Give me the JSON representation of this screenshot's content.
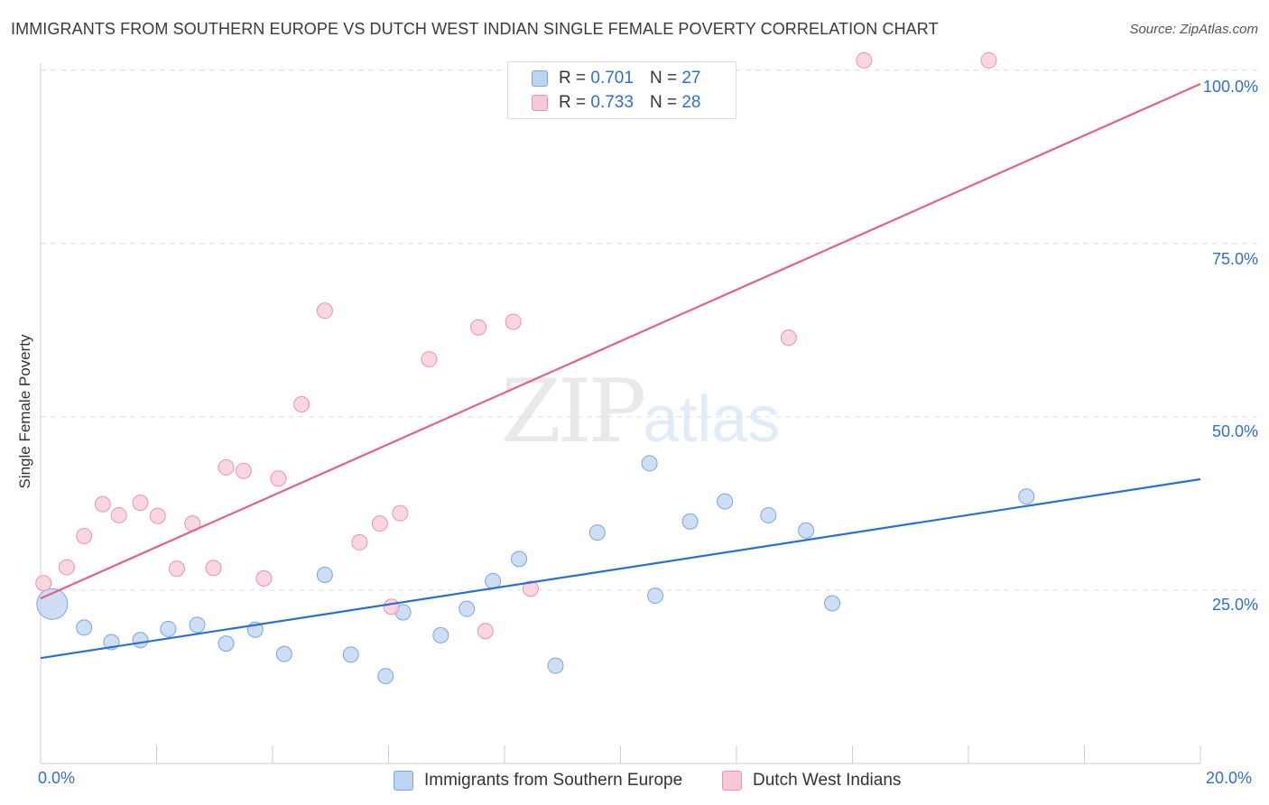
{
  "title": "IMMIGRANTS FROM SOUTHERN EUROPE VS DUTCH WEST INDIAN SINGLE FEMALE POVERTY CORRELATION CHART",
  "source": "Source: ZipAtlas.com",
  "watermark": {
    "zip": "ZIP",
    "atlas": "atlas"
  },
  "legend_top": [
    {
      "r_label": "R =",
      "r_value": "0.701",
      "n_label": "N =",
      "n_value": "27"
    },
    {
      "r_label": "R =",
      "r_value": "0.733",
      "n_label": "N =",
      "n_value": "28"
    }
  ],
  "colors": {
    "blue_fill": "#bcd3f2",
    "blue_stroke": "#7aa6e0",
    "blue_line": "#2a6fd1",
    "pink_fill": "#f8c8d6",
    "pink_stroke": "#eb93ad",
    "pink_line": "#e0628b",
    "tick_text": "#2f6fd0",
    "grid": "#dedede"
  },
  "chart_data": {
    "type": "scatter",
    "title": "IMMIGRANTS FROM SOUTHERN EUROPE VS DUTCH WEST INDIAN SINGLE FEMALE POVERTY CORRELATION CHART",
    "xlabel": "",
    "ylabel": "Single Female Poverty",
    "xlim": [
      0,
      20
    ],
    "ylim": [
      0,
      101
    ],
    "x_tick_labels": [
      "0.0%",
      "20.0%"
    ],
    "y_ticks": [
      25,
      50,
      75,
      100
    ],
    "y_tick_labels": [
      "25.0%",
      "50.0%",
      "75.0%",
      "100.0%"
    ],
    "grid": "horizontal dashed",
    "legend_position": "bottom",
    "series": [
      {
        "name": "Immigrants from Southern Europe",
        "color": "#bcd3f2",
        "r": 0.701,
        "n": 27,
        "trend": {
          "x": [
            0,
            20
          ],
          "y": [
            15.2,
            41.0
          ]
        },
        "points": [
          {
            "x": 0.2,
            "y": 23.0,
            "big": true
          },
          {
            "x": 0.75,
            "y": 19.6
          },
          {
            "x": 1.22,
            "y": 17.5
          },
          {
            "x": 1.72,
            "y": 17.8
          },
          {
            "x": 2.2,
            "y": 19.4
          },
          {
            "x": 2.7,
            "y": 20.0
          },
          {
            "x": 3.2,
            "y": 17.3
          },
          {
            "x": 3.7,
            "y": 19.3
          },
          {
            "x": 4.2,
            "y": 15.8
          },
          {
            "x": 4.9,
            "y": 27.2
          },
          {
            "x": 5.35,
            "y": 15.7
          },
          {
            "x": 5.95,
            "y": 12.6
          },
          {
            "x": 6.25,
            "y": 21.8
          },
          {
            "x": 6.9,
            "y": 18.5
          },
          {
            "x": 7.35,
            "y": 22.3
          },
          {
            "x": 7.8,
            "y": 26.3
          },
          {
            "x": 8.25,
            "y": 29.5
          },
          {
            "x": 8.88,
            "y": 14.1
          },
          {
            "x": 9.6,
            "y": 33.3
          },
          {
            "x": 10.5,
            "y": 43.3
          },
          {
            "x": 10.6,
            "y": 24.2
          },
          {
            "x": 11.2,
            "y": 34.9
          },
          {
            "x": 11.8,
            "y": 37.8
          },
          {
            "x": 12.55,
            "y": 35.8
          },
          {
            "x": 13.2,
            "y": 33.6
          },
          {
            "x": 13.65,
            "y": 23.1
          },
          {
            "x": 17.0,
            "y": 38.5
          }
        ]
      },
      {
        "name": "Dutch West Indians",
        "color": "#f8c8d6",
        "r": 0.733,
        "n": 28,
        "trend": {
          "x": [
            0,
            20
          ],
          "y": [
            23.8,
            98.0
          ]
        },
        "points": [
          {
            "x": 0.05,
            "y": 26.0
          },
          {
            "x": 0.45,
            "y": 28.3
          },
          {
            "x": 0.75,
            "y": 32.8
          },
          {
            "x": 1.07,
            "y": 37.4
          },
          {
            "x": 1.35,
            "y": 35.8
          },
          {
            "x": 1.72,
            "y": 37.6
          },
          {
            "x": 2.02,
            "y": 35.7
          },
          {
            "x": 2.35,
            "y": 28.1
          },
          {
            "x": 2.62,
            "y": 34.6
          },
          {
            "x": 2.98,
            "y": 28.2
          },
          {
            "x": 3.2,
            "y": 42.7
          },
          {
            "x": 3.5,
            "y": 42.2
          },
          {
            "x": 3.85,
            "y": 26.7
          },
          {
            "x": 4.1,
            "y": 41.1
          },
          {
            "x": 4.5,
            "y": 51.8
          },
          {
            "x": 4.9,
            "y": 65.3
          },
          {
            "x": 5.5,
            "y": 31.9
          },
          {
            "x": 5.85,
            "y": 34.6
          },
          {
            "x": 6.05,
            "y": 22.6
          },
          {
            "x": 6.2,
            "y": 36.1
          },
          {
            "x": 6.7,
            "y": 58.3
          },
          {
            "x": 7.55,
            "y": 62.9
          },
          {
            "x": 7.67,
            "y": 19.1
          },
          {
            "x": 8.15,
            "y": 63.7
          },
          {
            "x": 8.45,
            "y": 25.2
          },
          {
            "x": 12.9,
            "y": 61.4
          },
          {
            "x": 14.2,
            "y": 101.4
          },
          {
            "x": 16.35,
            "y": 101.4
          }
        ]
      }
    ]
  }
}
